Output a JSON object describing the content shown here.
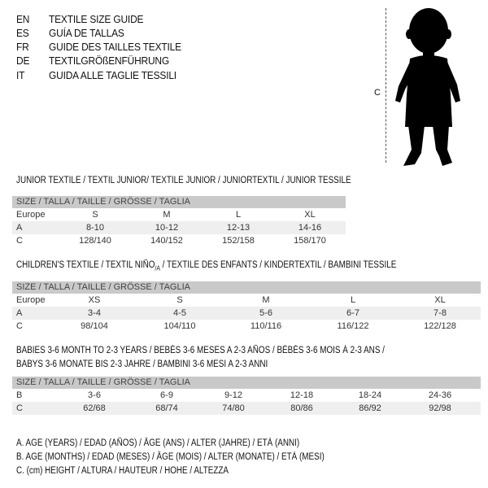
{
  "titles": [
    {
      "code": "EN",
      "text": "TEXTILE SIZE GUIDE"
    },
    {
      "code": "ES",
      "text": "GUÍA DE TALLAS"
    },
    {
      "code": "FR",
      "text": "GUIDE DES TAILLES TEXTILE"
    },
    {
      "code": "DE",
      "text": "TEXTILGRÖßENFÜHRUNG"
    },
    {
      "code": "IT",
      "text": "GUIDA ALLE TAGLIE TESSILI"
    }
  ],
  "figure": {
    "measure_label": "C"
  },
  "junior": {
    "heading": "JUNIOR TEXTILE / TEXTIL JUNIOR/ TEXTILE JUNIOR / JUNIORTEXTIL / JUNIOR TESSILE",
    "header": "SIZE / TALLA / TAILLE / GRÖSSE / TAGLIA",
    "rows": [
      {
        "label": "Europe",
        "values": [
          "S",
          "M",
          "L",
          "XL"
        ]
      },
      {
        "label": "A",
        "values": [
          "8-10",
          "10-12",
          "12-13",
          "14-16"
        ]
      },
      {
        "label": "C",
        "values": [
          "128/140",
          "140/152",
          "152/158",
          "158/170"
        ]
      }
    ]
  },
  "children": {
    "heading_a": "CHILDREN'S TEXTILE / TEXTIL NIÑO",
    "heading_sub": "/A",
    "heading_b": " / TEXTILE DES ENFANTS / KINDERTEXTIL / BAMBINI TESSILE",
    "header": "SIZE / TALLA / TAILLE / GRÖSSE / TAGLIA",
    "rows": [
      {
        "label": "Europe",
        "values": [
          "XS",
          "S",
          "M",
          "L",
          "XL"
        ]
      },
      {
        "label": "A",
        "values": [
          "3-4",
          "4-5",
          "5-6",
          "6-7",
          "7-8"
        ]
      },
      {
        "label": "C",
        "values": [
          "98/104",
          "104/110",
          "110/116",
          "116/122",
          "122/128"
        ]
      }
    ]
  },
  "babies": {
    "heading_1": "BABIES 3-6 MONTH TO 2-3 YEARS / BEBÉS 3-6 MESES A 2-3 AÑOS / BÉBÉS 3-6 MOIS À 2-3 ANS /",
    "heading_2": "BABYS 3-6 MONATE BIS 2-3 JAHRE / BAMBINI 3-6 MESI A 2-3 ANNI",
    "header": "SIZE / TALLA / TAILLE / GRÖSSE / TAGLIA",
    "rows": [
      {
        "label": "B",
        "values": [
          "3-6",
          "6-9",
          "9-12",
          "12-18",
          "18-24",
          "24-36"
        ]
      },
      {
        "label": "C",
        "values": [
          "62/68",
          "68/74",
          "74/80",
          "80/86",
          "86/92",
          "92/98"
        ]
      }
    ]
  },
  "legend": [
    "A. AGE (YEARS) / EDAD (AÑOS) / ÂGE (ANS) / ALTER (JAHRE) / ETÀ (ANNI)",
    "B. AGE (MONTHS) / EDAD (MESES) / ÂGE (MOIS) / ALTER (MONATE) / ETÀ (MESI)",
    "C. (cm) HEIGHT / ALTURA / HAUTEUR / HÖHE / ALTEZZA"
  ]
}
